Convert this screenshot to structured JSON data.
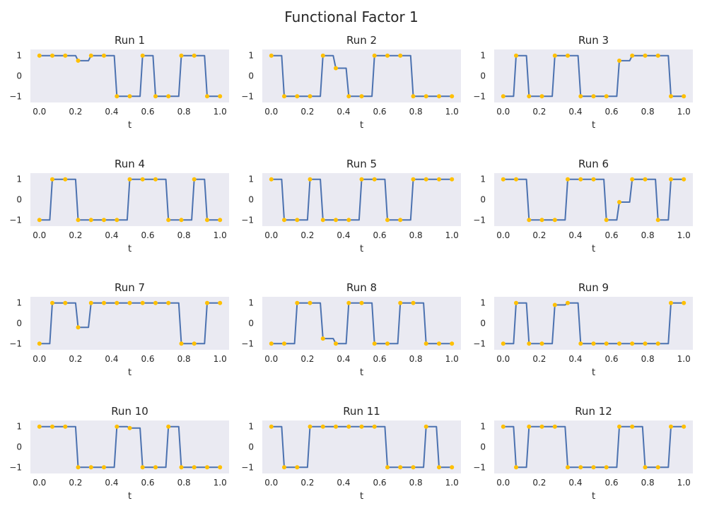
{
  "suptitle": "Functional Factor 1",
  "colors": {
    "background": "#eaeaf2",
    "line": "#4c72b0",
    "point": "#ffc000"
  },
  "chart_data": {
    "type": "line",
    "layout": "4x3 grid of small multiples",
    "xlabel": "t",
    "ylabel": "",
    "xlim": [
      -0.05,
      1.05
    ],
    "ylim": [
      -1.3,
      1.3
    ],
    "xticks": [
      0.0,
      0.2,
      0.4,
      0.6,
      0.8,
      1.0
    ],
    "xtick_labels": [
      "0.0",
      "0.2",
      "0.4",
      "0.6",
      "0.8",
      "1.0"
    ],
    "yticks": [
      1,
      0,
      -1
    ],
    "ytick_labels": [
      "1",
      "0",
      "−1"
    ],
    "grid": false,
    "x_points": [
      0.0,
      0.0714,
      0.1429,
      0.2143,
      0.2857,
      0.3571,
      0.4286,
      0.5,
      0.5714,
      0.6429,
      0.7143,
      0.7857,
      0.8571,
      0.9286,
      1.0
    ],
    "panels": [
      {
        "title": "Run 1",
        "values": [
          1,
          1,
          1,
          0.75,
          1,
          1,
          -1,
          -1,
          1,
          -1,
          -1,
          1,
          1,
          -1,
          -1
        ]
      },
      {
        "title": "Run 2",
        "values": [
          1,
          -1,
          -1,
          -1,
          1,
          0.38,
          -1,
          -1,
          1,
          1,
          1,
          -1,
          -1,
          -1,
          -1
        ]
      },
      {
        "title": "Run 3",
        "values": [
          -1,
          1,
          -1,
          -1,
          1,
          1,
          -1,
          -1,
          -1,
          0.75,
          1,
          1,
          1,
          -1,
          -1
        ]
      },
      {
        "title": "Run 4",
        "values": [
          -1,
          1,
          1,
          -1,
          -1,
          -1,
          -1,
          1,
          1,
          1,
          -1,
          -1,
          1,
          -1,
          -1
        ]
      },
      {
        "title": "Run 5",
        "values": [
          1,
          -1,
          -1,
          1,
          -1,
          -1,
          -1,
          1,
          1,
          -1,
          -1,
          1,
          1,
          1,
          1
        ]
      },
      {
        "title": "Run 6",
        "values": [
          1,
          1,
          -1,
          -1,
          -1,
          1,
          1,
          1,
          -1,
          -0.12,
          1,
          1,
          -1,
          1,
          1
        ]
      },
      {
        "title": "Run 7",
        "values": [
          -1,
          1,
          1,
          -0.2,
          1,
          1,
          1,
          1,
          1,
          1,
          1,
          -1,
          -1,
          1,
          1
        ]
      },
      {
        "title": "Run 8",
        "values": [
          -1,
          -1,
          1,
          1,
          -0.75,
          -1,
          1,
          1,
          -1,
          -1,
          1,
          1,
          -1,
          -1,
          -1
        ]
      },
      {
        "title": "Run 9",
        "values": [
          -1,
          1,
          -1,
          -1,
          0.9,
          1,
          -1,
          -1,
          -1,
          -1,
          -1,
          -1,
          -1,
          1,
          1
        ]
      },
      {
        "title": "Run 10",
        "values": [
          1,
          1,
          1,
          -1,
          -1,
          -1,
          1,
          0.93,
          -1,
          -1,
          1,
          -1,
          -1,
          -1,
          -1
        ]
      },
      {
        "title": "Run 11",
        "values": [
          1,
          -1,
          -1,
          1,
          1,
          1,
          1,
          1,
          1,
          -1,
          -1,
          -1,
          1,
          -1,
          -1
        ]
      },
      {
        "title": "Run 12",
        "values": [
          1,
          -1,
          1,
          1,
          1,
          -1,
          -1,
          -1,
          -1,
          1,
          1,
          -1,
          -1,
          1,
          1
        ]
      }
    ]
  }
}
